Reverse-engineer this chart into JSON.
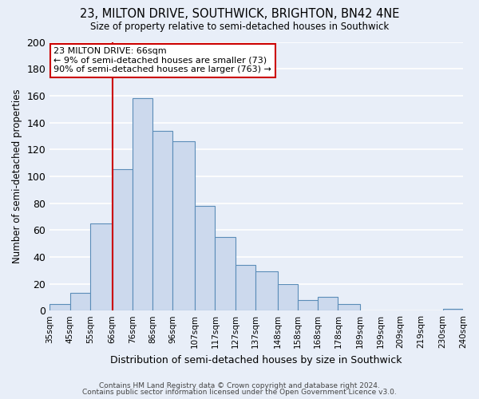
{
  "title": "23, MILTON DRIVE, SOUTHWICK, BRIGHTON, BN42 4NE",
  "subtitle": "Size of property relative to semi-detached houses in Southwick",
  "xlabel": "Distribution of semi-detached houses by size in Southwick",
  "ylabel": "Number of semi-detached properties",
  "bins": [
    35,
    45,
    55,
    66,
    76,
    86,
    96,
    107,
    117,
    127,
    137,
    148,
    158,
    168,
    178,
    189,
    199,
    209,
    219,
    230,
    240
  ],
  "counts": [
    5,
    13,
    65,
    105,
    158,
    134,
    126,
    78,
    55,
    34,
    29,
    20,
    8,
    10,
    5,
    0,
    0,
    0,
    0,
    1
  ],
  "bar_color": "#ccd9ed",
  "bar_edge_color": "#5b8db8",
  "vline_x": 66,
  "vline_color": "#cc0000",
  "annotation_title": "23 MILTON DRIVE: 66sqm",
  "annotation_line1": "← 9% of semi-detached houses are smaller (73)",
  "annotation_line2": "90% of semi-detached houses are larger (763) →",
  "annotation_box_color": "white",
  "annotation_box_edge_color": "#cc0000",
  "tick_labels": [
    "35sqm",
    "45sqm",
    "55sqm",
    "66sqm",
    "76sqm",
    "86sqm",
    "96sqm",
    "107sqm",
    "117sqm",
    "127sqm",
    "137sqm",
    "148sqm",
    "158sqm",
    "168sqm",
    "178sqm",
    "189sqm",
    "199sqm",
    "209sqm",
    "219sqm",
    "230sqm",
    "240sqm"
  ],
  "ylim": [
    0,
    200
  ],
  "yticks": [
    0,
    20,
    40,
    60,
    80,
    100,
    120,
    140,
    160,
    180,
    200
  ],
  "footer1": "Contains HM Land Registry data © Crown copyright and database right 2024.",
  "footer2": "Contains public sector information licensed under the Open Government Licence v3.0.",
  "background_color": "#e8eef8",
  "plot_bg_color": "#e8eef8",
  "grid_color": "white",
  "figsize": [
    6.0,
    5.0
  ],
  "dpi": 100
}
